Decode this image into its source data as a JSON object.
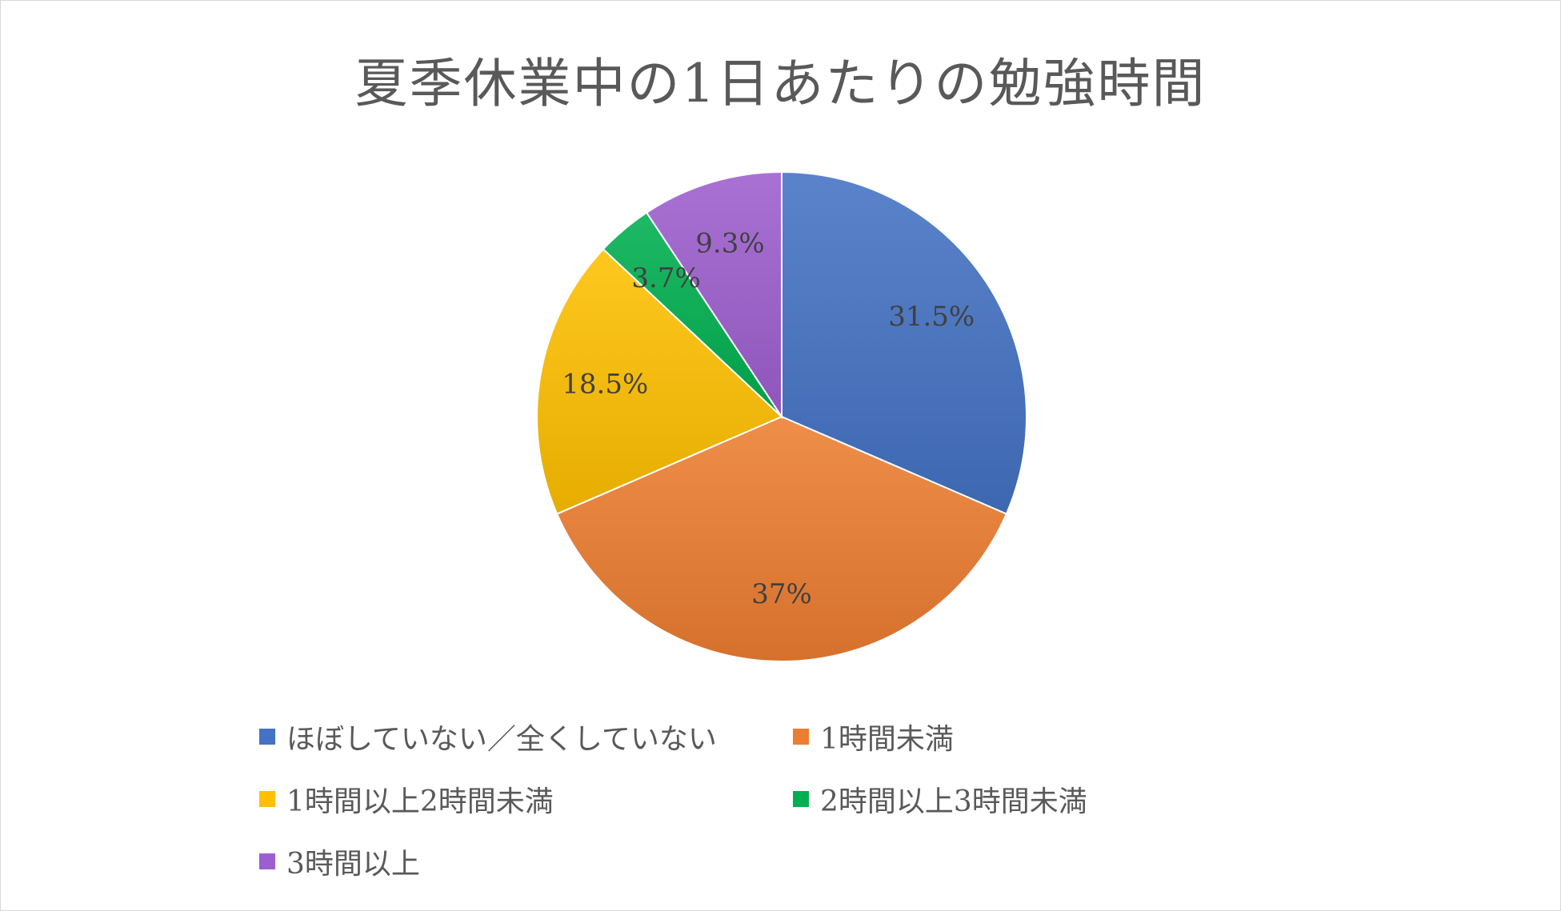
{
  "chart_data": {
    "type": "pie",
    "title": "夏季休業中の1日あたりの勉強時間",
    "slices": [
      {
        "label": "ほぼしていない／全くしていない",
        "value": 31.5,
        "data_label": "31.5%",
        "color": "#4472c4"
      },
      {
        "label": "1時間未満",
        "value": 37,
        "data_label": "37%",
        "color": "#ed7d31"
      },
      {
        "label": "1時間以上2時間未満",
        "value": 18.5,
        "data_label": "18.5%",
        "color": "#ffc000"
      },
      {
        "label": "2時間以上3時間未満",
        "value": 3.7,
        "data_label": "3.7%",
        "color": "#00b050"
      },
      {
        "label": "3時間以上",
        "value": 9.3,
        "data_label": "9.3%",
        "color": "#9e5ecf"
      }
    ],
    "legend_position": "bottom",
    "start_angle": "12 o'clock",
    "direction": "clockwise"
  }
}
